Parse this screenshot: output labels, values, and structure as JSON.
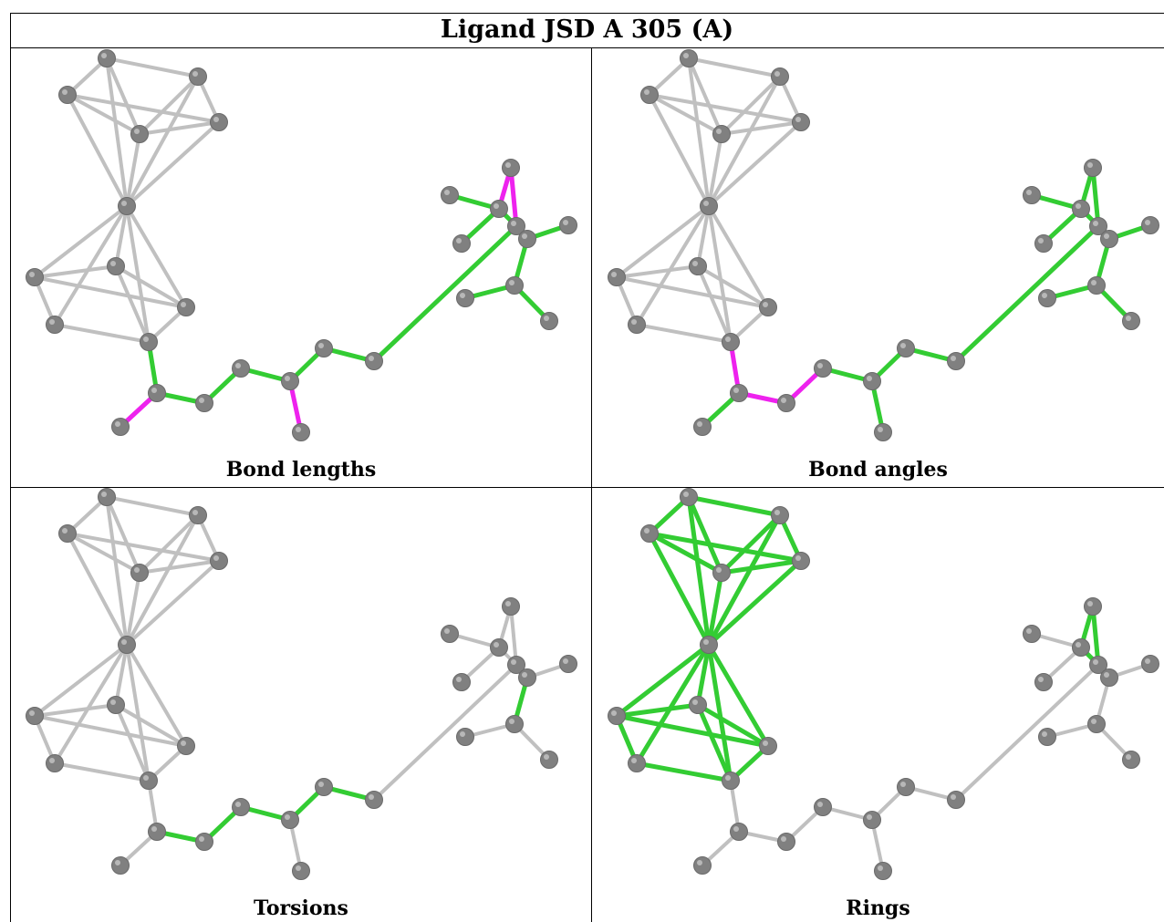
{
  "title": "Ligand JSD A 305 (A)",
  "panels": [
    {
      "caption": "Bond lengths"
    },
    {
      "caption": "Bond angles"
    },
    {
      "caption": "Torsions"
    },
    {
      "caption": "Rings"
    }
  ],
  "colors": {
    "atom": "#808080",
    "bond_default": "#c0c0c0",
    "bond_good": "#33cc33",
    "bond_outlier": "#ee22ee"
  }
}
